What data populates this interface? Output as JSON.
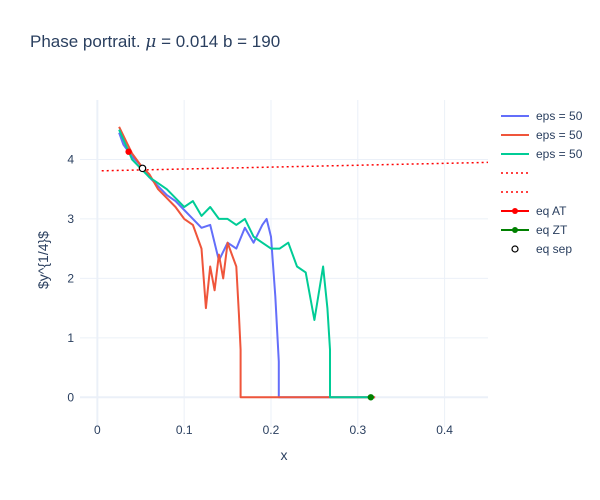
{
  "chart_data": {
    "type": "line",
    "title_prefix": "Phase portrait. ",
    "title_mu_symbol": "μ",
    "title_suffix": " = 0.014 b = 190",
    "xlabel": "x",
    "ylabel": "$y^{1/4}$",
    "xlim": [
      -0.02,
      0.45
    ],
    "ylim": [
      -0.5,
      5.0
    ],
    "xticks": [
      0,
      0.1,
      0.2,
      0.3,
      0.4
    ],
    "xtick_labels": [
      "0",
      "0.1",
      "0.2",
      "0.3",
      "0.4"
    ],
    "yticks": [
      0,
      1,
      2,
      3,
      4
    ],
    "ytick_labels": [
      "0",
      "1",
      "2",
      "3",
      "4"
    ],
    "grid": true,
    "legend_position": "right",
    "colors": {
      "series_blue": "#636efa",
      "series_red": "#ef553b",
      "series_green": "#00cc96",
      "dotted_red": "#ff0000",
      "eq_AT": "#ff0000",
      "eq_ZT": "#008000",
      "eq_sep": "#000000",
      "grid": "#ebf0f8",
      "zeroline": "#ebf0f8",
      "text": "#2a3f5f"
    },
    "series": [
      {
        "name": "eps = 50",
        "kind": "line",
        "color_key": "series_blue",
        "x": [
          0.025,
          0.03,
          0.04,
          0.05,
          0.06,
          0.07,
          0.08,
          0.09,
          0.1,
          0.11,
          0.12,
          0.13,
          0.14,
          0.15,
          0.16,
          0.17,
          0.18,
          0.19,
          0.195,
          0.2,
          0.205,
          0.209,
          0.209,
          0.22,
          0.25,
          0.3,
          0.32
        ],
        "y": [
          4.45,
          4.25,
          4.05,
          3.9,
          3.7,
          3.55,
          3.4,
          3.3,
          3.15,
          3.0,
          2.85,
          2.9,
          2.3,
          2.6,
          2.5,
          2.85,
          2.6,
          2.9,
          3.0,
          2.7,
          1.7,
          0.6,
          0.0,
          0.0,
          0.0,
          0.0,
          0.0
        ]
      },
      {
        "name": "eps = 50",
        "kind": "line",
        "color_key": "series_red",
        "x": [
          0.025,
          0.03,
          0.035,
          0.04,
          0.05,
          0.06,
          0.07,
          0.08,
          0.09,
          0.1,
          0.11,
          0.12,
          0.125,
          0.13,
          0.135,
          0.14,
          0.145,
          0.15,
          0.155,
          0.16,
          0.163,
          0.165,
          0.165,
          0.2,
          0.25,
          0.3,
          0.32
        ],
        "y": [
          4.55,
          4.4,
          4.25,
          4.1,
          3.9,
          3.75,
          3.5,
          3.35,
          3.2,
          3.0,
          2.9,
          2.5,
          1.5,
          2.2,
          1.8,
          2.4,
          2.0,
          2.6,
          2.4,
          2.2,
          1.4,
          0.8,
          0.0,
          0.0,
          0.0,
          0.0,
          0.0
        ]
      },
      {
        "name": "eps = 50",
        "kind": "line",
        "color_key": "series_green",
        "x": [
          0.025,
          0.04,
          0.05,
          0.06,
          0.07,
          0.08,
          0.09,
          0.1,
          0.11,
          0.12,
          0.13,
          0.14,
          0.15,
          0.16,
          0.17,
          0.18,
          0.19,
          0.2,
          0.21,
          0.22,
          0.23,
          0.24,
          0.25,
          0.26,
          0.265,
          0.268,
          0.268,
          0.3,
          0.315
        ],
        "y": [
          4.5,
          4.0,
          3.85,
          3.7,
          3.6,
          3.5,
          3.35,
          3.2,
          3.3,
          3.05,
          3.2,
          3.0,
          3.0,
          2.9,
          3.0,
          2.7,
          2.6,
          2.5,
          2.5,
          2.6,
          2.2,
          2.1,
          1.3,
          2.2,
          1.5,
          0.8,
          0.0,
          0.0,
          0.0
        ]
      },
      {
        "name": "",
        "kind": "dotted",
        "color_key": "dotted_red",
        "x": [
          0.005,
          0.45
        ],
        "y": [
          3.81,
          3.95
        ]
      },
      {
        "name": "",
        "kind": "dotted",
        "color_key": "dotted_red",
        "x": [],
        "y": []
      },
      {
        "name": "eq AT",
        "kind": "marker-line",
        "color_key": "eq_AT",
        "x": [
          0.036
        ],
        "y": [
          4.13
        ]
      },
      {
        "name": "eq ZT",
        "kind": "marker-line",
        "color_key": "eq_ZT",
        "x": [
          0.315
        ],
        "y": [
          0.0
        ]
      },
      {
        "name": "eq sep",
        "kind": "open-marker",
        "color_key": "eq_sep",
        "x": [
          0.052
        ],
        "y": [
          3.85
        ]
      }
    ]
  }
}
